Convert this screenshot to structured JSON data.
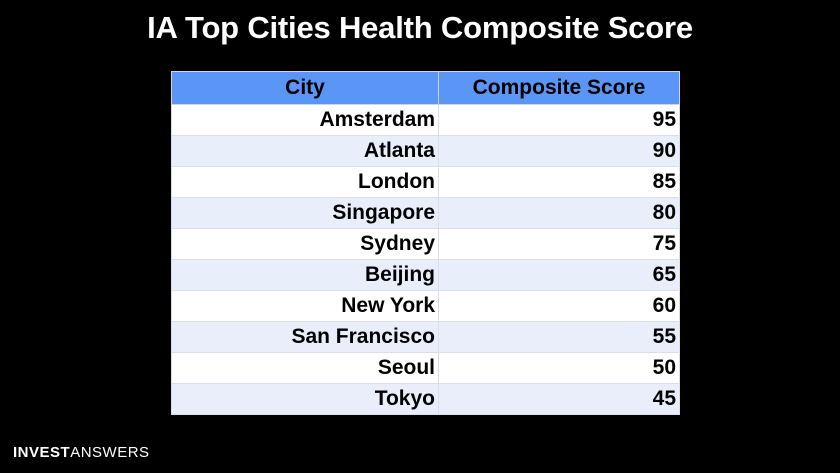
{
  "title": "IA Top Cities Health Composite Score",
  "brand": {
    "part1": "INVEST",
    "part2": "ANSWERS"
  },
  "colors": {
    "background": "#000000",
    "header": "#5b95f5",
    "row_even": "#e8eefa",
    "row_odd": "#ffffff"
  },
  "chart_data": {
    "type": "table",
    "title": "IA Top Cities Health Composite Score",
    "columns": [
      "City",
      "Composite Score"
    ],
    "rows": [
      {
        "city": "Amsterdam",
        "score": 95
      },
      {
        "city": "Atlanta",
        "score": 90
      },
      {
        "city": "London",
        "score": 85
      },
      {
        "city": "Singapore",
        "score": 80
      },
      {
        "city": "Sydney",
        "score": 75
      },
      {
        "city": "Beijing",
        "score": 65
      },
      {
        "city": "New York",
        "score": 60
      },
      {
        "city": "San Francisco",
        "score": 55
      },
      {
        "city": "Seoul",
        "score": 50
      },
      {
        "city": "Tokyo",
        "score": 45
      }
    ]
  }
}
